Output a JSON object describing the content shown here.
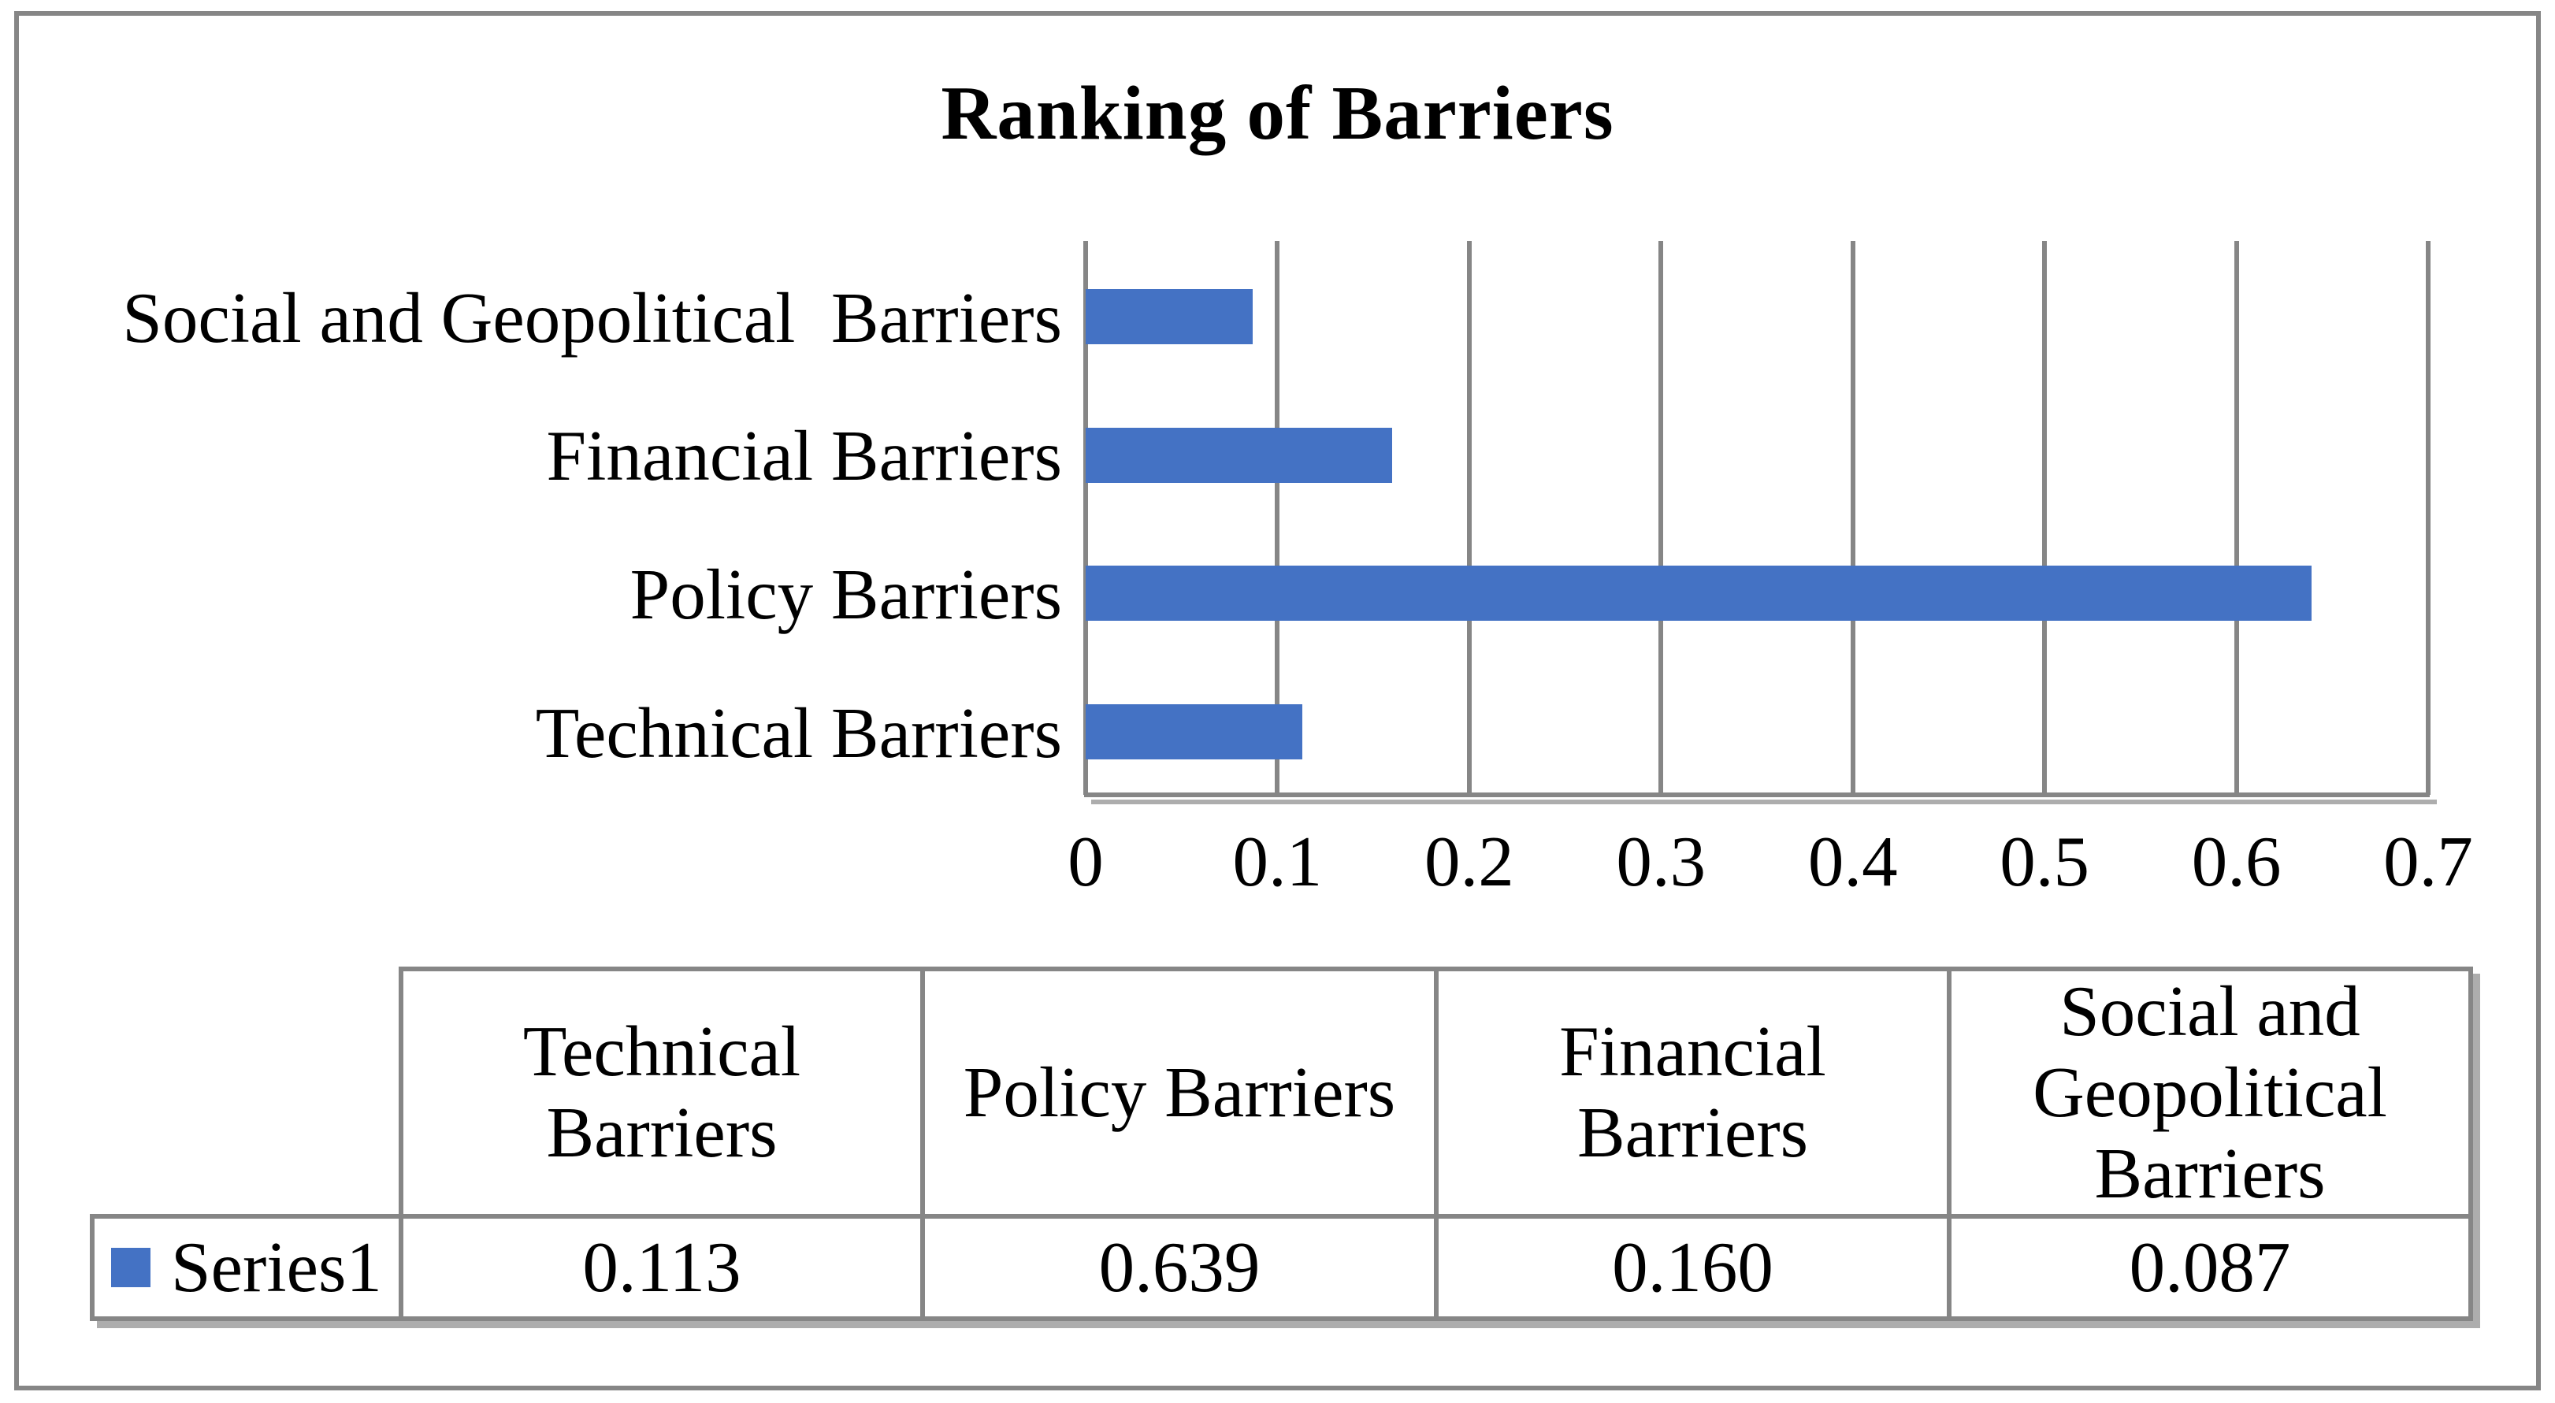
{
  "figure": {
    "background": "#FFFFFF",
    "frame_border_color": "#868686"
  },
  "chart_data": {
    "type": "bar",
    "orientation": "horizontal",
    "title": "Ranking of Barriers",
    "categories": [
      "Technical Barriers",
      "Policy Barriers",
      "Financial Barriers",
      "Social and Geopolitical  Barriers"
    ],
    "series": [
      {
        "name": "Series1",
        "values": [
          0.113,
          0.639,
          0.16,
          0.087
        ],
        "value_labels": [
          "0.113",
          "0.639",
          "0.160",
          "0.087"
        ],
        "color": "#4472C4"
      }
    ],
    "bar_order_top_to_bottom": [
      "Social and Geopolitical  Barriers",
      "Financial Barriers",
      "Policy Barriers",
      "Technical Barriers"
    ],
    "xlim": [
      0,
      0.7
    ],
    "x_tick_labels": [
      "0",
      "0.1",
      "0.2",
      "0.3",
      "0.4",
      "0.5",
      "0.6",
      "0.7"
    ],
    "grid": true,
    "gridline_color": "#868686",
    "legend_position": "data-table-left"
  },
  "data_table": {
    "corner_label": "",
    "column_headers": [
      "Technical\nBarriers",
      "Policy Barriers",
      "Financial\nBarriers",
      "Social and\nGeopolitical\nBarriers"
    ],
    "rows": [
      {
        "legend_label": "Series1",
        "swatch_color": "#4472C4",
        "values": [
          "0.113",
          "0.639",
          "0.160",
          "0.087"
        ]
      }
    ]
  },
  "colors": {
    "bar": "#4472C4",
    "grid_and_borders": "#868686",
    "shadow": "#ADADAD",
    "text": "#000000",
    "background": "#FFFFFF"
  }
}
